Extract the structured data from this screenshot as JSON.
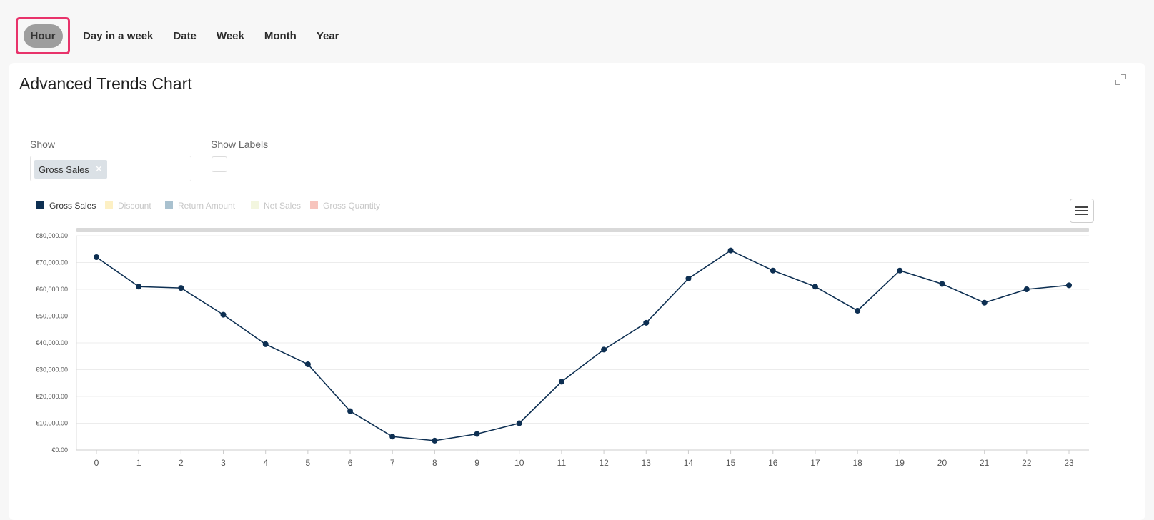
{
  "tabs": [
    {
      "label": "Hour",
      "active": true
    },
    {
      "label": "Day in a week"
    },
    {
      "label": "Date"
    },
    {
      "label": "Week"
    },
    {
      "label": "Month"
    },
    {
      "label": "Year"
    }
  ],
  "card": {
    "title": "Advanced Trends Chart",
    "show_label": "Show",
    "show_chip": "Gross Sales",
    "show_labels_label": "Show Labels"
  },
  "colors": {
    "series_line": "#0d2f52",
    "active_tab_border": "#e8336b",
    "active_tab_fill": "#9e9e9e"
  },
  "chart_data": {
    "type": "line",
    "legend": [
      {
        "name": "Gross Sales",
        "color": "#0d2f52",
        "active": true
      },
      {
        "name": "Discount",
        "color": "#fdf0c4",
        "active": false
      },
      {
        "name": "Return Amount",
        "color": "#a9c1cf",
        "active": false
      },
      {
        "name": "Net Sales",
        "color": "#f3f6df",
        "active": false
      },
      {
        "name": "Gross Quantity",
        "color": "#f7c4bd",
        "active": false
      }
    ],
    "legend_position": "top-left",
    "grid": true,
    "categories": [
      "0",
      "1",
      "2",
      "3",
      "4",
      "5",
      "6",
      "7",
      "8",
      "9",
      "10",
      "11",
      "12",
      "13",
      "14",
      "15",
      "16",
      "17",
      "18",
      "19",
      "20",
      "21",
      "22",
      "23"
    ],
    "series": [
      {
        "name": "Gross Sales",
        "values": [
          72000,
          61000,
          60500,
          50500,
          39500,
          32000,
          14500,
          5000,
          3500,
          6000,
          10000,
          25500,
          37500,
          47500,
          64000,
          74500,
          67000,
          61000,
          52000,
          67000,
          62000,
          55000,
          60000,
          61500
        ]
      }
    ],
    "ylim": [
      0,
      80000
    ],
    "yticks": [
      "€0.00",
      "€10,000.00",
      "€20,000.00",
      "€30,000.00",
      "€40,000.00",
      "€50,000.00",
      "€60,000.00",
      "€70,000.00",
      "€80,000.00"
    ]
  }
}
